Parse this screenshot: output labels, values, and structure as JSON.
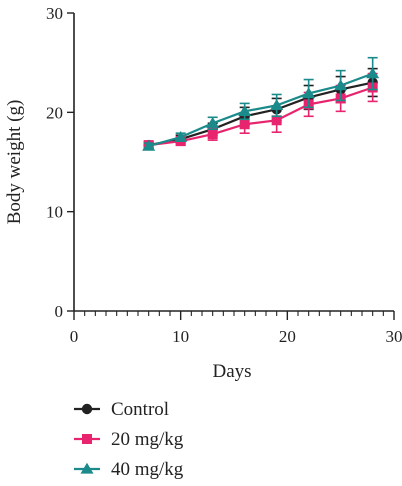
{
  "chart_data": {
    "type": "line",
    "xlabel": "Days",
    "ylabel": "Body weight (g)",
    "xlim": [
      0,
      30
    ],
    "ylim": [
      0,
      30
    ],
    "x_ticks": [
      0,
      10,
      20,
      30
    ],
    "y_ticks": [
      0,
      10,
      20,
      30
    ],
    "x_minor_step": 1,
    "grid": false,
    "legend_position": "bottom-left",
    "x": [
      7,
      10,
      13,
      16,
      19,
      22,
      25,
      28
    ],
    "series": [
      {
        "name": "Control",
        "marker": "circle",
        "color": "#222222",
        "values": [
          16.7,
          17.3,
          18.3,
          19.6,
          20.3,
          21.5,
          22.3,
          23.0
        ],
        "error": [
          0.3,
          0.4,
          0.6,
          0.9,
          1.1,
          1.2,
          1.3,
          1.4
        ]
      },
      {
        "name": "20 mg/kg",
        "marker": "square",
        "color": "#e8246e",
        "values": [
          16.7,
          17.1,
          17.8,
          18.8,
          19.2,
          20.8,
          21.4,
          22.5
        ],
        "error": [
          0.3,
          0.4,
          0.6,
          0.9,
          1.2,
          1.2,
          1.3,
          1.4
        ]
      },
      {
        "name": "40 mg/kg",
        "marker": "triangle",
        "color": "#1a8a8a",
        "values": [
          16.6,
          17.5,
          18.9,
          20.1,
          20.7,
          21.9,
          22.7,
          23.9
        ],
        "error": [
          0.3,
          0.4,
          0.6,
          0.8,
          1.1,
          1.4,
          1.5,
          1.6
        ]
      }
    ]
  }
}
